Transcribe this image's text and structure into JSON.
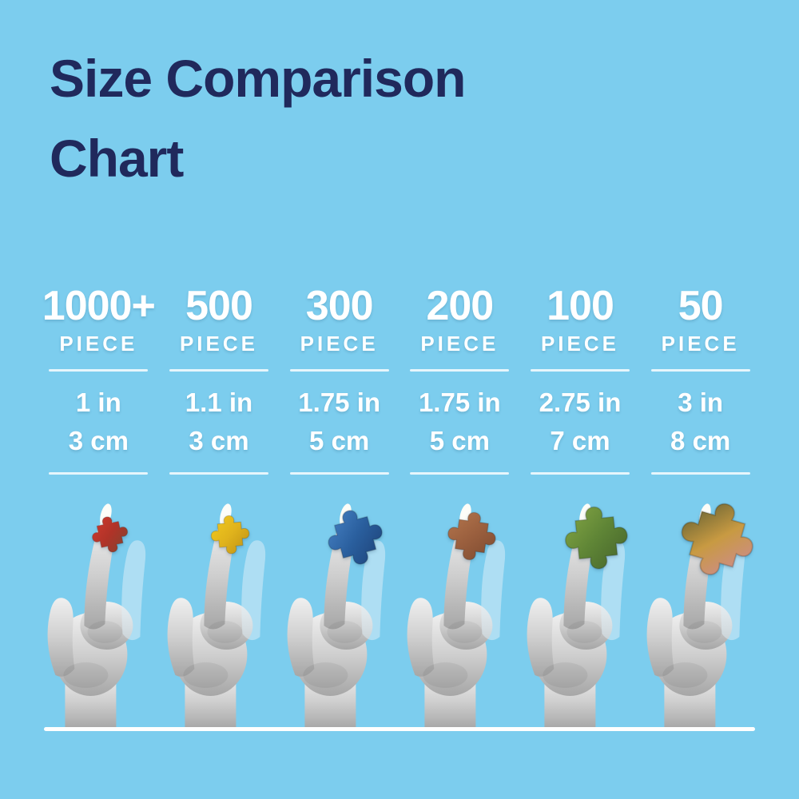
{
  "background_color": "#7CCDEE",
  "title": {
    "line1": "Size Comparison",
    "line2": "Chart",
    "color": "#20295C"
  },
  "text_color": "#FFFFFF",
  "divider_color": "#FFFFFF",
  "baseline_color": "#FFFFFF",
  "columns": [
    {
      "count": "1000+",
      "unit_label": "PIECE",
      "inches": "1 in",
      "centimeters": "3 cm"
    },
    {
      "count": "500",
      "unit_label": "PIECE",
      "inches": "1.1 in",
      "centimeters": "3 cm"
    },
    {
      "count": "300",
      "unit_label": "PIECE",
      "inches": "1.75 in",
      "centimeters": "5 cm"
    },
    {
      "count": "200",
      "unit_label": "PIECE",
      "inches": "1.75 in",
      "centimeters": "5 cm"
    },
    {
      "count": "100",
      "unit_label": "PIECE",
      "inches": "2.75 in",
      "centimeters": "7 cm"
    },
    {
      "count": "50",
      "unit_label": "PIECE",
      "inches": "3 in",
      "centimeters": "8 cm"
    }
  ],
  "hands": [
    {
      "piece_name": "red-puzzle-piece",
      "piece_colors": [
        "#d23a2e",
        "#b03328",
        "#7e4630"
      ],
      "piece_width": 60,
      "piece_rotation": -12
    },
    {
      "piece_name": "yellow-puzzle-piece",
      "piece_colors": [
        "#f2cb1f",
        "#e0b31c",
        "#bd8f15"
      ],
      "piece_width": 64,
      "piece_rotation": -5
    },
    {
      "piece_name": "blue-puzzle-piece",
      "piece_colors": [
        "#4a85c8",
        "#2a5f9e",
        "#1c3f74"
      ],
      "piece_width": 92,
      "piece_rotation": -15
    },
    {
      "piece_name": "brown-puzzle-piece",
      "piece_colors": [
        "#b5774e",
        "#9a5f3e",
        "#7c4a30"
      ],
      "piece_width": 80,
      "piece_rotation": 8
    },
    {
      "piece_name": "green-puzzle-piece",
      "piece_colors": [
        "#86a845",
        "#5f8536",
        "#44622a"
      ],
      "piece_width": 104,
      "piece_rotation": -6
    },
    {
      "piece_name": "multicolor-puzzle-piece",
      "piece_colors": [
        "#4f5530",
        "#c89a42",
        "#cf87a2"
      ],
      "piece_width": 122,
      "piece_rotation": 16
    }
  ],
  "chart_data": {
    "type": "table",
    "title": "Size Comparison Chart",
    "columns": [
      "1000+ PIECE",
      "500 PIECE",
      "300 PIECE",
      "200 PIECE",
      "100 PIECE",
      "50 PIECE"
    ],
    "rows": [
      [
        "1 in",
        "1.1 in",
        "1.75 in",
        "1.75 in",
        "2.75 in",
        "3 in"
      ],
      [
        "3 cm",
        "3 cm",
        "5 cm",
        "5 cm",
        "7 cm",
        "8 cm"
      ]
    ]
  }
}
